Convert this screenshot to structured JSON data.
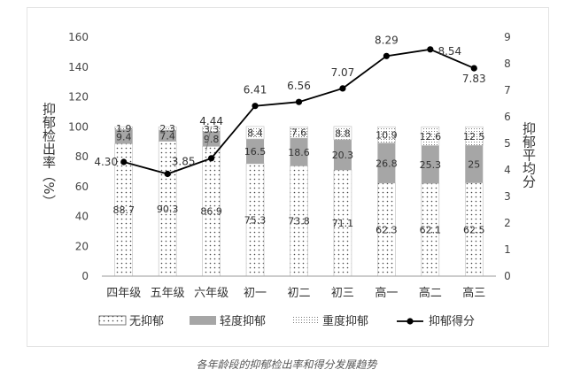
{
  "caption": "各年龄段的抑郁检出率和得分发展趋势",
  "chart_data": {
    "type": "bar",
    "stacked": true,
    "categories": [
      "四年级",
      "五年级",
      "六年级",
      "初一",
      "初二",
      "初三",
      "高一",
      "高二",
      "高三"
    ],
    "series": [
      {
        "name": "无抑郁",
        "values": [
          88.7,
          90.3,
          86.9,
          75.3,
          73.8,
          71.1,
          62.3,
          62.1,
          62.5
        ]
      },
      {
        "name": "轻度抑郁",
        "values": [
          9.4,
          7.4,
          9.8,
          16.5,
          18.6,
          20.3,
          26.8,
          25.3,
          25.0
        ]
      },
      {
        "name": "重度抑郁",
        "values": [
          1.9,
          2.3,
          3.3,
          8.4,
          7.6,
          8.8,
          10.9,
          12.6,
          12.5
        ]
      }
    ],
    "series_labels": {
      "无抑郁": [
        "88.7",
        "90.3",
        "86.9",
        "75.3",
        "73.8",
        "71.1",
        "62.3",
        "62.1",
        "62.5"
      ],
      "轻度抑郁": [
        "9.4",
        "7.4",
        "9.8",
        "16.5",
        "18.6",
        "20.3",
        "26.8",
        "25.3",
        "25"
      ],
      "重度抑郁": [
        "1.9",
        "2.3",
        "3.3",
        "8.4",
        "7.6",
        "8.8",
        "10.9",
        "12.6",
        "12.5"
      ]
    },
    "line": {
      "name": "抑郁得分",
      "axis": "right",
      "values": [
        4.3,
        3.85,
        4.44,
        6.41,
        6.56,
        7.07,
        8.29,
        8.54,
        7.83
      ],
      "labels": [
        "4.30",
        "3.85",
        "4.44",
        "6.41",
        "6.56",
        "7.07",
        "8.29",
        "8.54",
        "7.83"
      ]
    },
    "ylabel": "抑郁检出率（%）",
    "ylabel_right": "抑郁平均分",
    "ylim": [
      0,
      160
    ],
    "yticks": [
      0,
      20,
      40,
      60,
      80,
      100,
      120,
      140,
      160
    ],
    "ylim_right": [
      0,
      9
    ],
    "yticks_right": [
      0,
      1,
      2,
      3,
      4,
      5,
      6,
      7,
      8,
      9
    ],
    "grid": false,
    "legend_position": "bottom",
    "colors": {
      "无抑郁": "#ffffff",
      "轻度抑郁": "#a6a6a6",
      "重度抑郁": "#ffffff",
      "line": "#000000"
    }
  }
}
